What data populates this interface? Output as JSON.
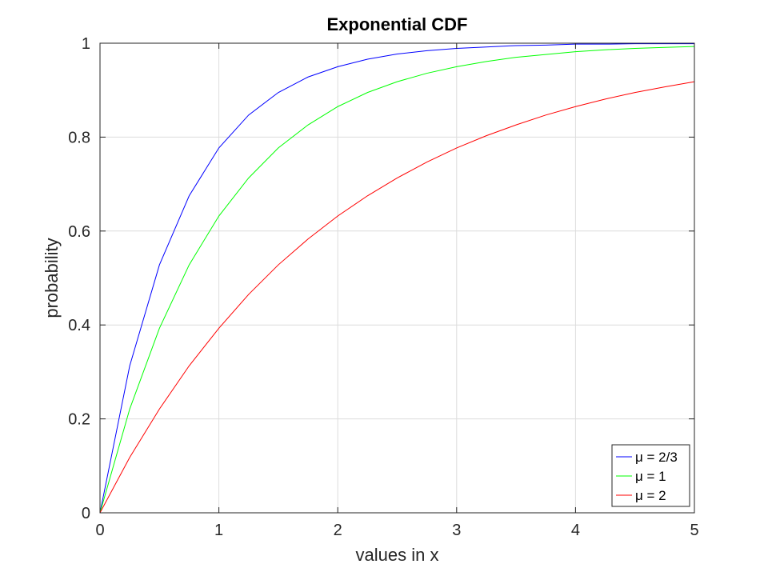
{
  "chart_data": {
    "type": "line",
    "title": "Exponential CDF",
    "xlabel": "values in x",
    "ylabel": "probability",
    "xlim": [
      0,
      5
    ],
    "ylim": [
      0,
      1
    ],
    "xticks": [
      0,
      1,
      2,
      3,
      4,
      5
    ],
    "xtick_labels": [
      "0",
      "1",
      "2",
      "3",
      "4",
      "5"
    ],
    "yticks": [
      0,
      0.2,
      0.4,
      0.6,
      0.8,
      1
    ],
    "ytick_labels": [
      "0",
      "0.2",
      "0.4",
      "0.6",
      "0.8",
      "1"
    ],
    "grid": true,
    "legend_position": "bottom-right",
    "series": [
      {
        "name": "μ = 2/3",
        "color": "#0000ff",
        "x": [
          0,
          0.25,
          0.5,
          0.75,
          1,
          1.25,
          1.5,
          1.75,
          2,
          2.25,
          2.5,
          2.75,
          3,
          3.25,
          3.5,
          3.75,
          4,
          4.25,
          4.5,
          4.75,
          5
        ],
        "y": [
          0,
          0.313,
          0.528,
          0.675,
          0.777,
          0.847,
          0.895,
          0.928,
          0.95,
          0.966,
          0.977,
          0.984,
          0.989,
          0.992,
          0.995,
          0.996,
          0.998,
          0.998,
          0.999,
          0.999,
          0.999
        ]
      },
      {
        "name": "μ = 1",
        "color": "#00ff00",
        "x": [
          0,
          0.25,
          0.5,
          0.75,
          1,
          1.25,
          1.5,
          1.75,
          2,
          2.25,
          2.5,
          2.75,
          3,
          3.25,
          3.5,
          3.75,
          4,
          4.25,
          4.5,
          4.75,
          5
        ],
        "y": [
          0,
          0.221,
          0.393,
          0.528,
          0.632,
          0.713,
          0.777,
          0.826,
          0.865,
          0.895,
          0.918,
          0.936,
          0.95,
          0.961,
          0.97,
          0.976,
          0.982,
          0.986,
          0.989,
          0.991,
          0.993
        ]
      },
      {
        "name": "μ = 2",
        "color": "#ff0000",
        "x": [
          0,
          0.25,
          0.5,
          0.75,
          1,
          1.25,
          1.5,
          1.75,
          2,
          2.25,
          2.5,
          2.75,
          3,
          3.25,
          3.5,
          3.75,
          4,
          4.25,
          4.5,
          4.75,
          5
        ],
        "y": [
          0,
          0.118,
          0.221,
          0.313,
          0.393,
          0.465,
          0.528,
          0.583,
          0.632,
          0.675,
          0.713,
          0.747,
          0.777,
          0.803,
          0.826,
          0.847,
          0.865,
          0.881,
          0.895,
          0.907,
          0.918
        ]
      }
    ]
  }
}
